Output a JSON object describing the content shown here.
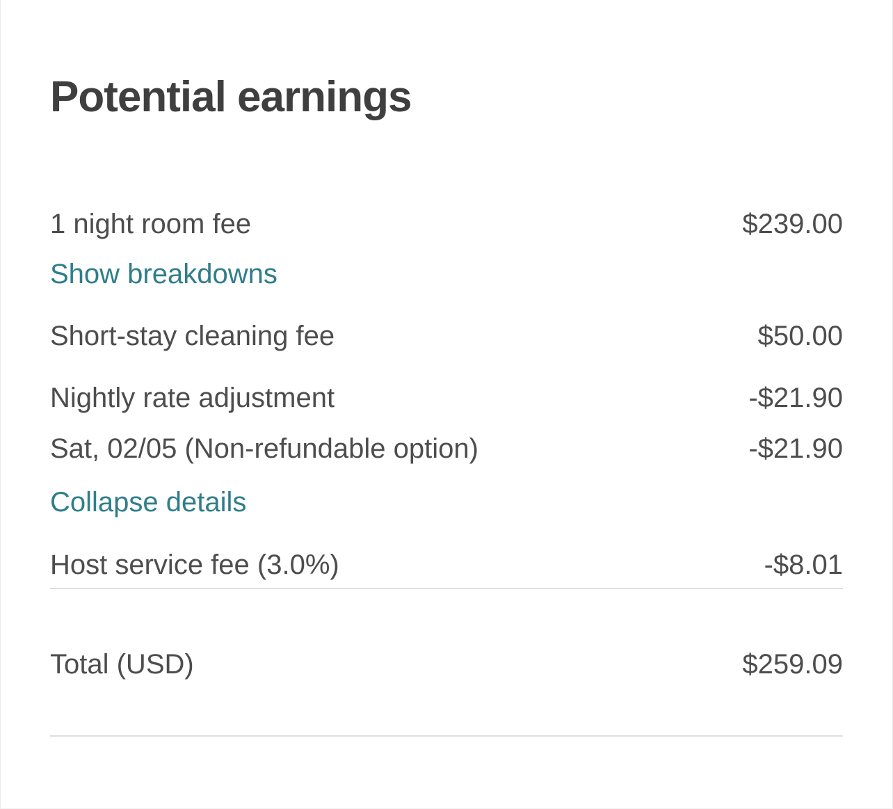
{
  "earnings": {
    "title": "Potential earnings",
    "items": [
      {
        "label": "1 night room fee",
        "amount": "$239.00"
      },
      {
        "label": "Short-stay cleaning fee",
        "amount": "$50.00"
      },
      {
        "label": "Nightly rate adjustment",
        "amount": "-$21.90"
      },
      {
        "label": "Sat, 02/05 (Non-refundable option)",
        "amount": "-$21.90"
      },
      {
        "label": "Host service fee (3.0%)",
        "amount": "-$8.01"
      }
    ],
    "links": {
      "show_breakdowns": "Show breakdowns",
      "collapse_details": "Collapse details"
    },
    "total": {
      "label": "Total (USD)",
      "amount": "$259.09"
    },
    "colors": {
      "link": "#2f7e8a",
      "text": "#4d4d4d",
      "title": "#3f3f3f",
      "divider": "#dedede"
    }
  }
}
